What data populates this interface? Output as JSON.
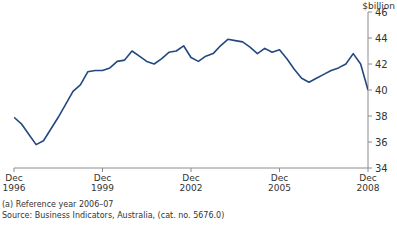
{
  "chart_data": {
    "type": "line",
    "y_label": "$billion",
    "categories": [
      "Dec 1996",
      null,
      null,
      null,
      null,
      null,
      null,
      null,
      null,
      null,
      null,
      null,
      "Dec 1999",
      null,
      null,
      null,
      null,
      null,
      null,
      null,
      null,
      null,
      null,
      null,
      "Dec 2002",
      null,
      null,
      null,
      null,
      null,
      null,
      null,
      null,
      null,
      null,
      null,
      "Dec 2005",
      null,
      null,
      null,
      null,
      null,
      null,
      null,
      null,
      null,
      null,
      null,
      "Dec 2008"
    ],
    "values": [
      37.9,
      37.4,
      36.6,
      35.8,
      36.1,
      37.0,
      37.9,
      38.9,
      39.9,
      40.4,
      41.4,
      41.5,
      41.5,
      41.7,
      42.2,
      42.3,
      43.0,
      42.6,
      42.2,
      42.0,
      42.4,
      42.9,
      43.0,
      43.4,
      42.5,
      42.2,
      42.6,
      42.8,
      43.4,
      43.9,
      43.8,
      43.7,
      43.3,
      42.8,
      43.2,
      42.9,
      43.1,
      42.4,
      41.6,
      40.9,
      40.6,
      40.9,
      41.2,
      41.5,
      41.7,
      42.0,
      42.8,
      42.0,
      40.0
    ],
    "color": "#23487f",
    "ylim": [
      34,
      46
    ],
    "yticks": [
      34,
      36,
      38,
      40,
      42,
      44,
      46
    ],
    "grid": false,
    "footnotes": [
      "(a) Reference year 2006–07",
      "Source: Business Indicators, Australia, (cat. no. 5676.0)"
    ]
  }
}
